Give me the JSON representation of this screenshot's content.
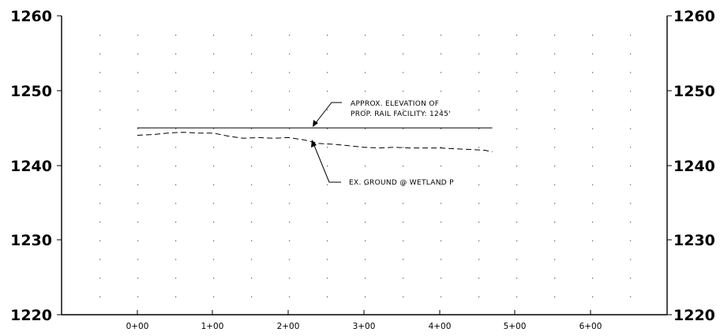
{
  "left_elevation_labels": [
    "1260",
    "1250",
    "1240",
    "1230",
    "1220"
  ],
  "right_elevation_labels": [
    "1260",
    "1250",
    "1240",
    "1230",
    "1220"
  ],
  "station_labels": [
    "0+00",
    "1+00",
    "2+00",
    "3+00",
    "4+00",
    "5+00",
    "6+00"
  ],
  "notes": {
    "proposed_line1": "APPROX. ELEVATION OF",
    "proposed_line2": "PROP. RAIL FACILITY: 1245'",
    "ground": "EX. GROUND @ WETLAND P"
  },
  "profile": {
    "proposed_elevation": 1245,
    "proposed_start_station": 0,
    "proposed_end_station": 470,
    "ground_points": [
      [
        0,
        1244.0
      ],
      [
        20,
        1244.1
      ],
      [
        40,
        1244.3
      ],
      [
        60,
        1244.4
      ],
      [
        80,
        1244.3
      ],
      [
        100,
        1244.3
      ],
      [
        120,
        1243.9
      ],
      [
        140,
        1243.6
      ],
      [
        160,
        1243.7
      ],
      [
        180,
        1243.6
      ],
      [
        200,
        1243.7
      ],
      [
        220,
        1243.4
      ],
      [
        240,
        1242.9
      ],
      [
        260,
        1242.8
      ],
      [
        280,
        1242.6
      ],
      [
        300,
        1242.4
      ],
      [
        320,
        1242.3
      ],
      [
        340,
        1242.4
      ],
      [
        360,
        1242.3
      ],
      [
        380,
        1242.3
      ],
      [
        400,
        1242.3
      ],
      [
        420,
        1242.2
      ],
      [
        440,
        1242.1
      ],
      [
        460,
        1242.0
      ],
      [
        470,
        1241.8
      ]
    ]
  }
}
